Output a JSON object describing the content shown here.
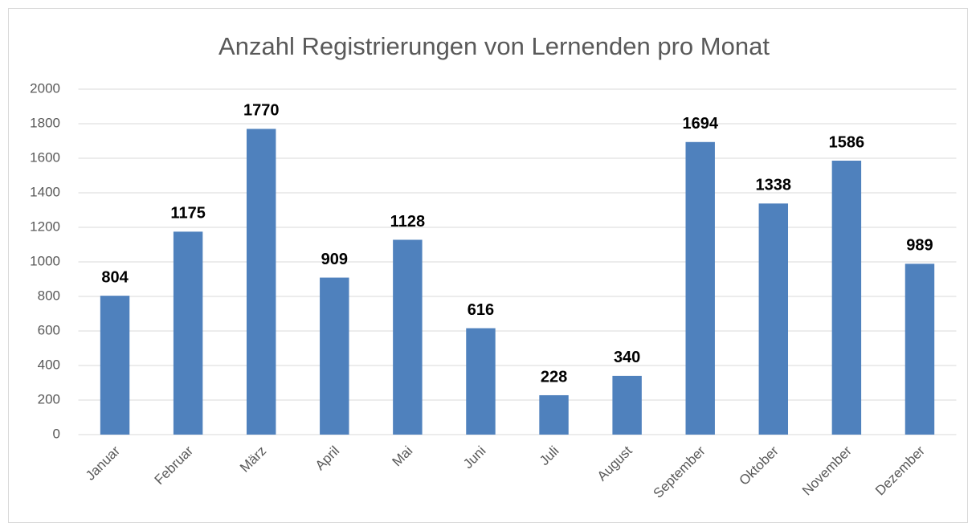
{
  "chart_data": {
    "type": "bar",
    "title": "Anzahl Registrierungen von Lernenden pro Monat",
    "categories": [
      "Januar",
      "Februar",
      "März",
      "April",
      "Mai",
      "Juni",
      "Juli",
      "August",
      "September",
      "Oktober",
      "November",
      "Dezember"
    ],
    "values": [
      804,
      1175,
      1770,
      909,
      1128,
      616,
      228,
      340,
      1694,
      1338,
      1586,
      989
    ],
    "color": "#4f81bd",
    "ylim": [
      0,
      2000
    ],
    "yticks": [
      0,
      200,
      400,
      600,
      800,
      1000,
      1200,
      1400,
      1600,
      1800,
      2000
    ],
    "grid": true
  }
}
